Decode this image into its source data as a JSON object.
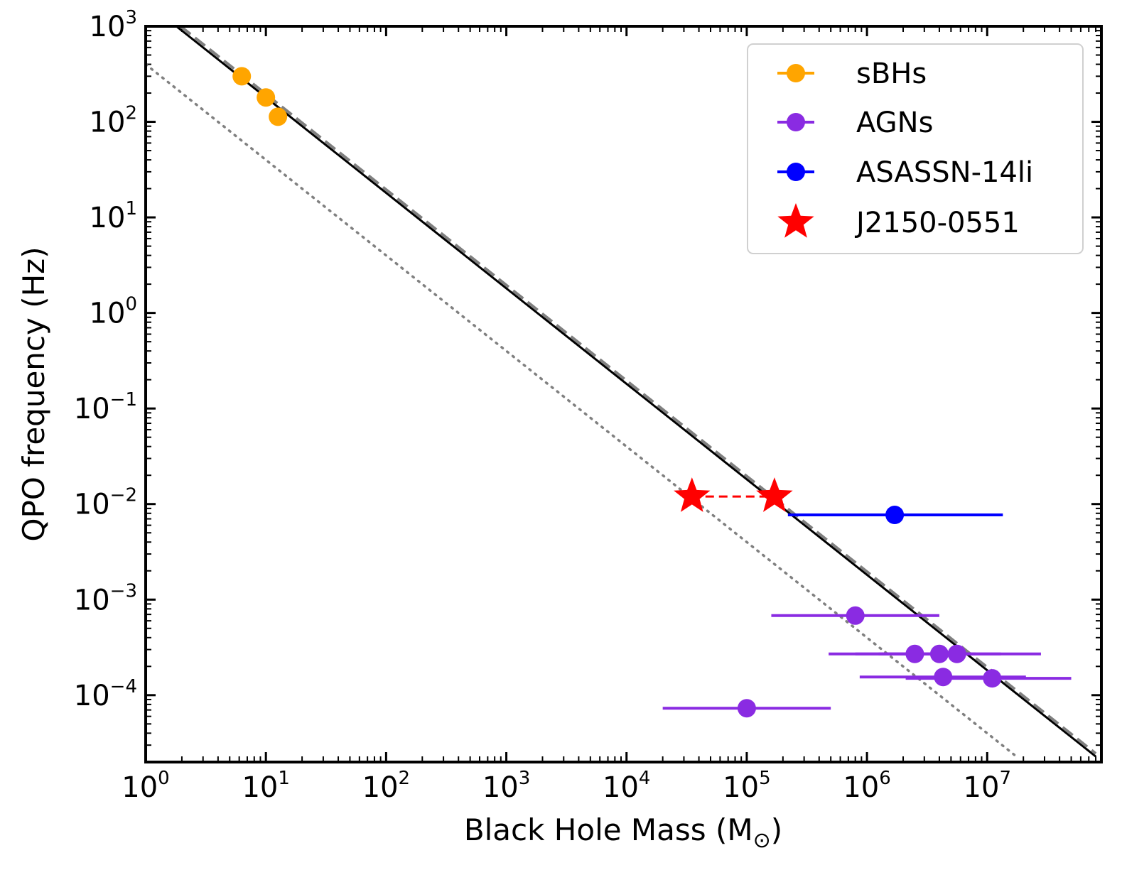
{
  "chart_data": {
    "type": "scatter",
    "xscale": "log",
    "yscale": "log",
    "xlim_exp": [
      0,
      7.95
    ],
    "ylim_exp": [
      -4.7,
      3
    ],
    "x_ticks": [
      {
        "base": "10",
        "exp": "0",
        "value": 1
      },
      {
        "base": "10",
        "exp": "1",
        "value": 10
      },
      {
        "base": "10",
        "exp": "2",
        "value": 100
      },
      {
        "base": "10",
        "exp": "3",
        "value": 1000
      },
      {
        "base": "10",
        "exp": "4",
        "value": 10000
      },
      {
        "base": "10",
        "exp": "5",
        "value": 100000
      },
      {
        "base": "10",
        "exp": "6",
        "value": 1000000
      },
      {
        "base": "10",
        "exp": "7",
        "value": 10000000
      }
    ],
    "y_ticks": [
      {
        "base": "10",
        "exp": "3",
        "value": 1000
      },
      {
        "base": "10",
        "exp": "2",
        "value": 100
      },
      {
        "base": "10",
        "exp": "1",
        "value": 10
      },
      {
        "base": "10",
        "exp": "0",
        "value": 1
      },
      {
        "base": "10",
        "exp": "−1",
        "value": 0.1
      },
      {
        "base": "10",
        "exp": "−2",
        "value": 0.01
      },
      {
        "base": "10",
        "exp": "−3",
        "value": 0.001
      },
      {
        "base": "10",
        "exp": "−4",
        "value": 0.0001
      }
    ],
    "xlabel": "Black Hole Mass (M",
    "xlabel_unit_sub": "⊙",
    "xlabel_close": ")",
    "ylabel": "QPO frequency (Hz)",
    "reference_lines": [
      {
        "name": "solid",
        "style": "solid",
        "color": "#000000",
        "points": [
          [
            1.8,
            1000
          ],
          [
            80000000,
            2.28e-05
          ]
        ]
      },
      {
        "name": "dashed",
        "style": "dashed",
        "color": "#808080",
        "points": [
          [
            1.95,
            1000
          ],
          [
            80000000,
            2.45e-05
          ]
        ]
      },
      {
        "name": "dotted",
        "style": "dotted",
        "color": "#808080",
        "points": [
          [
            1,
            400
          ],
          [
            18000000,
            2.22e-05
          ]
        ]
      }
    ],
    "series": [
      {
        "name": "sBHs",
        "color": "#ffa500",
        "marker": "circle",
        "points": [
          {
            "x": 6.3,
            "y": 300
          },
          {
            "x": 10,
            "y": 180
          },
          {
            "x": 12.6,
            "y": 113
          }
        ]
      },
      {
        "name": "AGNs",
        "color": "#8a2be2",
        "marker": "circle",
        "points": [
          {
            "x": 800000,
            "y": 0.00068,
            "xerr": [
              160000,
              4000000
            ]
          },
          {
            "x": 2500000,
            "y": 0.00027,
            "xerr": [
              480000,
              8000000
            ]
          },
          {
            "x": 4000000,
            "y": 0.00027,
            "xerr": [
              800000,
              13000000
            ]
          },
          {
            "x": 5600000,
            "y": 0.00027,
            "xerr": [
              1250000,
              28000000
            ]
          },
          {
            "x": 4300000,
            "y": 0.000155,
            "xerr": [
              870000,
              21000000
            ]
          },
          {
            "x": 11000000,
            "y": 0.00015,
            "xerr": [
              2100000,
              50000000
            ]
          },
          {
            "x": 100000,
            "y": 7.3e-05,
            "xerr": [
              20000,
              500000
            ]
          }
        ]
      },
      {
        "name": "ASASSN-14li",
        "color": "#0000ff",
        "marker": "circle",
        "points": [
          {
            "x": 1700000,
            "y": 0.0077,
            "xerr": [
              220000,
              13500000
            ]
          }
        ]
      },
      {
        "name": "J2150-0551",
        "color": "#ff0000",
        "marker": "star",
        "connect": "dashed",
        "points": [
          {
            "x": 35000,
            "y": 0.012
          },
          {
            "x": 170000,
            "y": 0.012
          }
        ]
      }
    ],
    "legend": {
      "position": "top-right",
      "entries": [
        {
          "label": "sBHs",
          "color": "#ffa500",
          "marker": "circle"
        },
        {
          "label": "AGNs",
          "color": "#8a2be2",
          "marker": "circle"
        },
        {
          "label": "ASASSN-14li",
          "color": "#0000ff",
          "marker": "circle"
        },
        {
          "label": "J2150-0551",
          "color": "#ff0000",
          "marker": "star"
        }
      ]
    }
  }
}
